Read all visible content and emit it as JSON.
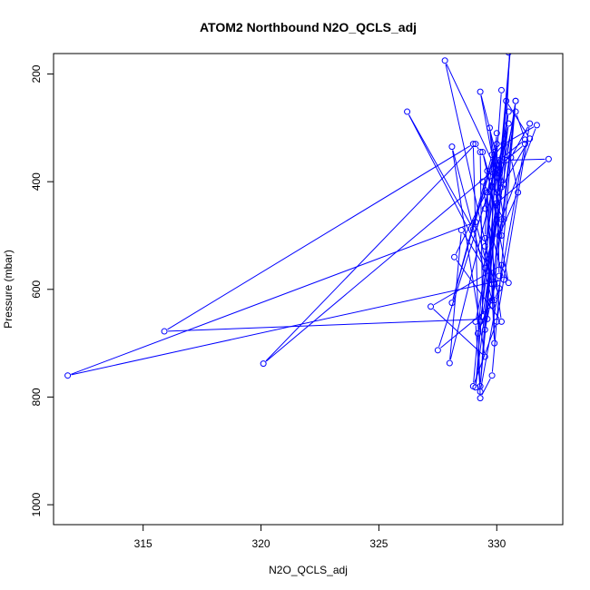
{
  "chart_data": {
    "type": "line",
    "title": "ATOM2 Northbound N2O_QCLS_adj",
    "xlabel": "N2O_QCLS_adj",
    "ylabel": "Pressure (mbar)",
    "xlim": [
      311.2,
      332.8
    ],
    "ylim": [
      1037,
      162
    ],
    "y_reversed": true,
    "grid": false,
    "legend": "none",
    "xticks": [
      "315",
      "320",
      "325",
      "330"
    ],
    "yticks": [
      "200",
      "400",
      "600",
      "800",
      "1000"
    ],
    "series": [
      {
        "color": "#0000ff",
        "marker": "open-circle",
        "line": true,
        "x": [
          330.2,
          329.3,
          330.4,
          331.4,
          330.2,
          329.8,
          328.1,
          329.5,
          327.2,
          330.2,
          330.5,
          329.6,
          330.1,
          331.2,
          330.8,
          330.0,
          330.5,
          329.1,
          330.0,
          329.6,
          315.9,
          329.0,
          329.3,
          329.8,
          330.8,
          329.4,
          329.3,
          329.1,
          320.1,
          331.2,
          329.3,
          329.1,
          330.0,
          329.5,
          328.5,
          328.0,
          330.3,
          331.7,
          330.2,
          329.8,
          329.1,
          311.8,
          330.3,
          329.5,
          329.9,
          329.0,
          330.0,
          331.4,
          330.6,
          330.9,
          330.1,
          329.5,
          329.6,
          329.9,
          329.8,
          330.4,
          332.2,
          330.0,
          329.7,
          330.3,
          329.4,
          330.2,
          328.2,
          330.0,
          327.8,
          329.9,
          329.5,
          330.6,
          330.1,
          329.7,
          329.4,
          330.2,
          330.8,
          329.8,
          327.5,
          330.3,
          329.9,
          329.0,
          326.2,
          330.1,
          329.9,
          329.5,
          330.5,
          329.3,
          329.2,
          330.1,
          330.0,
          328.1,
          329.8,
          329.3,
          330.3,
          330.6,
          330.5
        ],
        "y": [
          230,
          780,
          250,
          320,
          410,
          620,
          335,
          725,
          632,
          555,
          588,
          380,
          360,
          322,
          270,
          420,
          292,
          782,
          310,
          655,
          678,
          330,
          802,
          760,
          250,
          650,
          345,
          330,
          738,
          330,
          790,
          660,
          470,
          560,
          490,
          737,
          330,
          295,
          470,
          590,
          475,
          760,
          582,
          450,
          345,
          780,
          660,
          292,
          355,
          420,
          500,
          505,
          420,
          700,
          410,
          360,
          358,
          440,
          300,
          470,
          400,
          660,
          540,
          380,
          175,
          590,
          675,
          140,
          430,
          390,
          345,
          500,
          250,
          630,
          713,
          330,
          350,
          488,
          270,
          598,
          620,
          520,
          270,
          660,
          682,
          575,
          330,
          625,
          350,
          233,
          405,
          100,
          160
        ]
      }
    ]
  }
}
